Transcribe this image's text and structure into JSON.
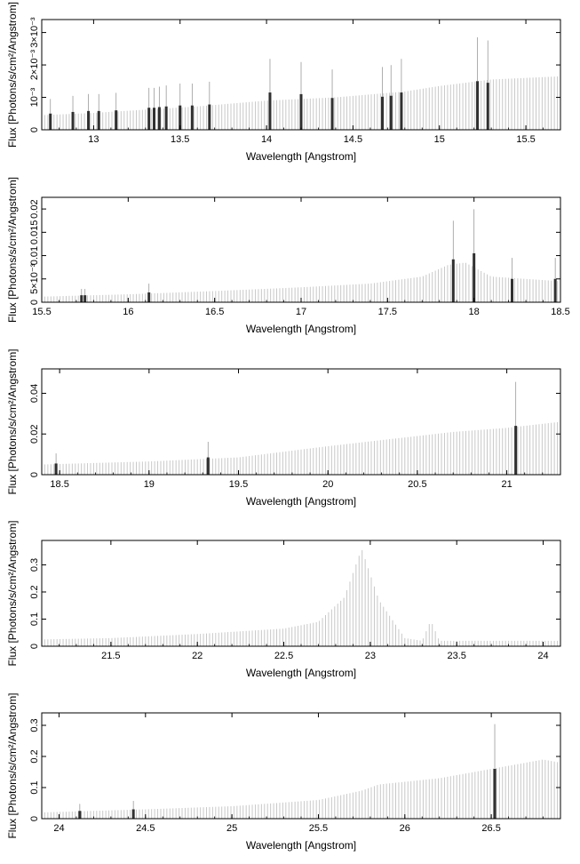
{
  "colors": {
    "continuum": "#c8c8c8",
    "line_bar": "#303030",
    "frame": "#000000"
  },
  "chart_data": [
    {
      "type": "bar",
      "xlabel": "Wavelength [Angstrom]",
      "ylabel": "Flux [Photons/s/cm²/Angstrom]",
      "xlim": [
        12.7,
        15.7
      ],
      "ylim": [
        0,
        0.0034
      ],
      "xticks": [
        13,
        13.5,
        14,
        14.5,
        15,
        15.5
      ],
      "yticks": [
        0,
        0.001,
        0.002,
        0.003
      ],
      "ytick_labels": [
        "0",
        "10⁻³",
        "2×10⁻³",
        "3×10⁻³"
      ],
      "continuum": [
        [
          12.7,
          0.00045
        ],
        [
          13.0,
          0.00052
        ],
        [
          13.3,
          0.00062
        ],
        [
          13.6,
          0.00072
        ],
        [
          14.0,
          0.0009
        ],
        [
          14.4,
          0.001
        ],
        [
          14.8,
          0.00118
        ],
        [
          15.0,
          0.00135
        ],
        [
          15.3,
          0.00155
        ],
        [
          15.7,
          0.00165
        ]
      ],
      "lines": [
        {
          "x": 12.75,
          "y": 0.0005
        },
        {
          "x": 12.88,
          "y": 0.00055
        },
        {
          "x": 12.97,
          "y": 0.00058
        },
        {
          "x": 13.03,
          "y": 0.00058
        },
        {
          "x": 13.13,
          "y": 0.0006
        },
        {
          "x": 13.32,
          "y": 0.00068
        },
        {
          "x": 13.35,
          "y": 0.00068
        },
        {
          "x": 13.38,
          "y": 0.0007
        },
        {
          "x": 13.42,
          "y": 0.00072
        },
        {
          "x": 13.5,
          "y": 0.00075
        },
        {
          "x": 13.57,
          "y": 0.00075
        },
        {
          "x": 13.67,
          "y": 0.00078
        },
        {
          "x": 14.02,
          "y": 0.00115
        },
        {
          "x": 14.2,
          "y": 0.0011
        },
        {
          "x": 14.38,
          "y": 0.00098
        },
        {
          "x": 14.67,
          "y": 0.00102
        },
        {
          "x": 14.72,
          "y": 0.00105
        },
        {
          "x": 14.78,
          "y": 0.00115
        },
        {
          "x": 15.22,
          "y": 0.0015
        },
        {
          "x": 15.28,
          "y": 0.00145
        }
      ]
    },
    {
      "type": "bar",
      "xlabel": "Wavelength [Angstrom]",
      "ylabel": "Flux [Photons/s/cm²/Angstrom]",
      "xlim": [
        15.5,
        18.5
      ],
      "ylim": [
        0,
        0.0225
      ],
      "xticks": [
        15.5,
        16,
        16.5,
        17,
        17.5,
        18,
        18.5
      ],
      "yticks": [
        0,
        0.005,
        0.01,
        0.015,
        0.02
      ],
      "ytick_labels": [
        "0",
        "5×10⁻³",
        "0.01",
        "0.015",
        "0.02"
      ],
      "continuum": [
        [
          15.5,
          0.0012
        ],
        [
          16.0,
          0.0017
        ],
        [
          16.5,
          0.0024
        ],
        [
          17.0,
          0.0032
        ],
        [
          17.4,
          0.004
        ],
        [
          17.7,
          0.0055
        ],
        [
          17.85,
          0.008
        ],
        [
          17.95,
          0.0085
        ],
        [
          18.1,
          0.0055
        ],
        [
          18.3,
          0.005
        ],
        [
          18.5,
          0.0045
        ]
      ],
      "lines": [
        {
          "x": 15.73,
          "y": 0.0015
        },
        {
          "x": 15.75,
          "y": 0.0015
        },
        {
          "x": 16.12,
          "y": 0.0021
        },
        {
          "x": 17.88,
          "y": 0.0092
        },
        {
          "x": 18.0,
          "y": 0.0105
        },
        {
          "x": 18.22,
          "y": 0.005
        },
        {
          "x": 18.47,
          "y": 0.005
        }
      ]
    },
    {
      "type": "bar",
      "xlabel": "Wavelength [Angstrom]",
      "ylabel": "Flux [Photons/s/cm²/Angstrom]",
      "xlim": [
        18.4,
        21.3
      ],
      "ylim": [
        0,
        0.052
      ],
      "xticks": [
        18.5,
        19,
        19.5,
        20,
        20.5,
        21
      ],
      "yticks": [
        0,
        0.02,
        0.04
      ],
      "ytick_labels": [
        "0",
        "0.02",
        "0.04"
      ],
      "continuum": [
        [
          18.4,
          0.005
        ],
        [
          19.0,
          0.0065
        ],
        [
          19.5,
          0.0085
        ],
        [
          20.0,
          0.014
        ],
        [
          20.5,
          0.019
        ],
        [
          20.7,
          0.021
        ],
        [
          21.0,
          0.023
        ],
        [
          21.3,
          0.026
        ]
      ],
      "lines": [
        {
          "x": 18.48,
          "y": 0.0055
        },
        {
          "x": 19.33,
          "y": 0.0085
        },
        {
          "x": 21.05,
          "y": 0.024
        }
      ]
    },
    {
      "type": "bar",
      "xlabel": "Wavelength [Angstrom]",
      "ylabel": "Flux [Photons/s/cm²/Angstrom]",
      "xlim": [
        21.1,
        24.1
      ],
      "ylim": [
        0,
        0.39
      ],
      "xticks": [
        21.5,
        22,
        22.5,
        23,
        23.5,
        24
      ],
      "yticks": [
        0,
        0.1,
        0.2,
        0.3
      ],
      "ytick_labels": [
        "0",
        "0.1",
        "0.2",
        "0.3"
      ],
      "continuum": [
        [
          21.1,
          0.025
        ],
        [
          21.5,
          0.03
        ],
        [
          22.0,
          0.045
        ],
        [
          22.5,
          0.065
        ],
        [
          22.7,
          0.09
        ],
        [
          22.85,
          0.18
        ],
        [
          22.95,
          0.36
        ],
        [
          23.05,
          0.17
        ],
        [
          23.2,
          0.03
        ],
        [
          23.3,
          0.02
        ],
        [
          23.35,
          0.095
        ],
        [
          23.4,
          0.02
        ],
        [
          24.1,
          0.02
        ]
      ],
      "lines": []
    },
    {
      "type": "bar",
      "xlabel": "Wavelength [Angstrom]",
      "ylabel": "Flux [Photons/s/cm²/Angstrom]",
      "xlim": [
        23.9,
        26.9
      ],
      "ylim": [
        0,
        0.34
      ],
      "xticks": [
        24,
        24.5,
        25,
        25.5,
        26,
        26.5
      ],
      "yticks": [
        0,
        0.1,
        0.2,
        0.3
      ],
      "ytick_labels": [
        "0",
        "0.1",
        "0.2",
        "0.3"
      ],
      "continuum": [
        [
          23.9,
          0.02
        ],
        [
          24.5,
          0.03
        ],
        [
          25.0,
          0.04
        ],
        [
          25.5,
          0.06
        ],
        [
          25.75,
          0.09
        ],
        [
          25.85,
          0.11
        ],
        [
          26.2,
          0.13
        ],
        [
          26.5,
          0.16
        ],
        [
          26.8,
          0.19
        ],
        [
          26.9,
          0.18
        ]
      ],
      "lines": [
        {
          "x": 24.12,
          "y": 0.025
        },
        {
          "x": 24.43,
          "y": 0.03
        },
        {
          "x": 26.52,
          "y": 0.16
        }
      ]
    }
  ]
}
